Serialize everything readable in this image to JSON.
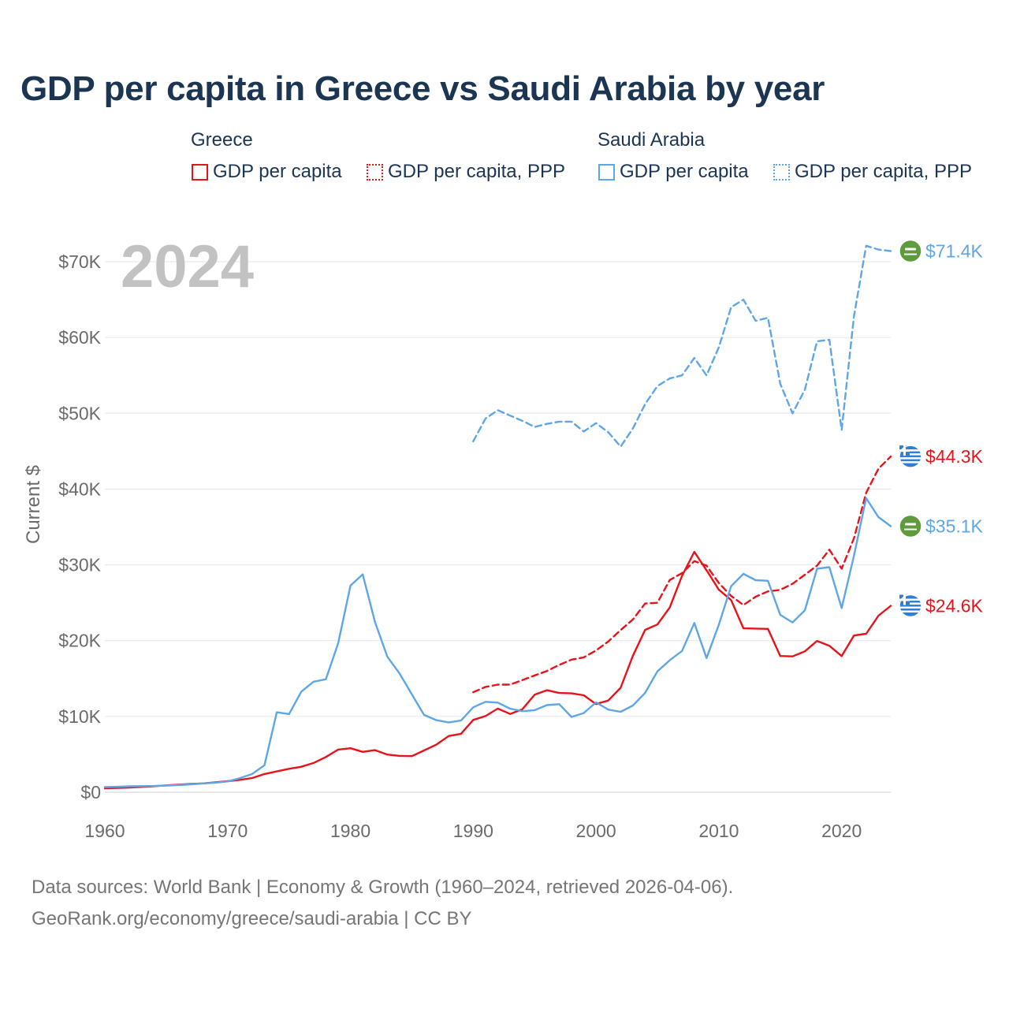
{
  "title": "GDP per capita in Greece vs Saudi Arabia by year",
  "legend": {
    "greece": {
      "country": "Greece",
      "gdp": "GDP per capita",
      "ppp": "GDP per capita, PPP"
    },
    "saudi": {
      "country": "Saudi Arabia",
      "gdp": "GDP per capita",
      "ppp": "GDP per capita, PPP"
    }
  },
  "colors": {
    "greece": "#e8131a",
    "saudi": "#5ea6e6",
    "axis_text": "#6b6b6b",
    "year_watermark": "#c2c2c2",
    "saudi_flag": "#5f9a3c",
    "greece_flag": "#2f7fd6"
  },
  "source": {
    "line1": "Data sources: World Bank | Economy & Growth (1960–2024, retrieved 2026-04-06).",
    "line2": "GeoRank.org/economy/greece/saudi-arabia | CC BY"
  },
  "chart_data": {
    "type": "line",
    "year_label": "2024",
    "ylabel": "Current $",
    "xlim": [
      1960,
      2024
    ],
    "ylim": [
      0,
      70000
    ],
    "x_ticks": [
      1960,
      1970,
      1980,
      1990,
      2000,
      2010,
      2020
    ],
    "x_tick_labels": [
      "1960",
      "1970",
      "1980",
      "1990",
      "2000",
      "2010",
      "2020"
    ],
    "y_ticks": [
      0,
      10000,
      20000,
      30000,
      40000,
      50000,
      60000,
      70000
    ],
    "y_tick_labels": [
      "$0",
      "$10K",
      "$20K",
      "$30K",
      "$40K",
      "$50K",
      "$60K",
      "$70K"
    ],
    "grid": true,
    "series": [
      {
        "name": "Greece GDP per capita",
        "country": "greece",
        "style": "solid",
        "start_year": 1960,
        "values": [
          520,
          570,
          620,
          700,
          790,
          900,
          1000,
          1090,
          1170,
          1300,
          1460,
          1630,
          1870,
          2400,
          2750,
          3090,
          3360,
          3860,
          4650,
          5630,
          5800,
          5330,
          5550,
          4970,
          4790,
          4760,
          5510,
          6280,
          7420,
          7710,
          9540,
          10050,
          11040,
          10330,
          10950,
          12870,
          13460,
          13090,
          13040,
          12790,
          11630,
          12110,
          13780,
          18020,
          21430,
          22130,
          24370,
          28550,
          31710,
          29290,
          26720,
          25350,
          21620,
          21590,
          21550,
          17970,
          17920,
          18590,
          19960,
          19330,
          17960,
          20680,
          20910,
          23300,
          24600
        ],
        "end_label": "$24.6K"
      },
      {
        "name": "Greece GDP per capita, PPP",
        "country": "greece",
        "style": "dashed",
        "start_year": 1990,
        "values": [
          13200,
          13900,
          14200,
          14200,
          14800,
          15400,
          16000,
          16800,
          17500,
          17800,
          18700,
          19900,
          21400,
          22800,
          24900,
          25000,
          28000,
          28900,
          30500,
          29900,
          27600,
          25900,
          24700,
          25800,
          26500,
          26700,
          27500,
          28700,
          29900,
          32000,
          29500,
          33500,
          39500,
          42700,
          44300
        ],
        "end_label": "$44.3K"
      },
      {
        "name": "Saudi Arabia GDP per capita",
        "country": "saudi",
        "style": "solid",
        "start_year": 1960,
        "values": [
          690,
          720,
          780,
          800,
          820,
          880,
          950,
          1040,
          1160,
          1260,
          1420,
          1860,
          2400,
          3560,
          10550,
          10320,
          13280,
          14580,
          14900,
          19660,
          27260,
          28750,
          22460,
          17900,
          15660,
          12910,
          10190,
          9510,
          9220,
          9450,
          11200,
          11930,
          11830,
          11030,
          10690,
          10830,
          11490,
          11620,
          9930,
          10440,
          11860,
          10900,
          10610,
          11440,
          13120,
          15950,
          17410,
          18640,
          22330,
          17700,
          22100,
          27190,
          28810,
          27980,
          27900,
          23400,
          22400,
          24000,
          29500,
          29700,
          24300,
          31200,
          38800,
          36300,
          35100
        ],
        "end_label": "$35.1K"
      },
      {
        "name": "Saudi Arabia GDP per capita, PPP",
        "country": "saudi",
        "style": "dashed",
        "start_year": 1990,
        "values": [
          46300,
          49300,
          50400,
          49700,
          49000,
          48200,
          48600,
          48900,
          48900,
          47600,
          48700,
          47500,
          45600,
          48000,
          51200,
          53600,
          54600,
          55000,
          57300,
          55000,
          58700,
          64000,
          65000,
          62200,
          62600,
          53900,
          50000,
          53100,
          59500,
          59700,
          47800,
          62800,
          72100,
          71600,
          71400
        ],
        "end_label": "$71.4K"
      }
    ]
  }
}
